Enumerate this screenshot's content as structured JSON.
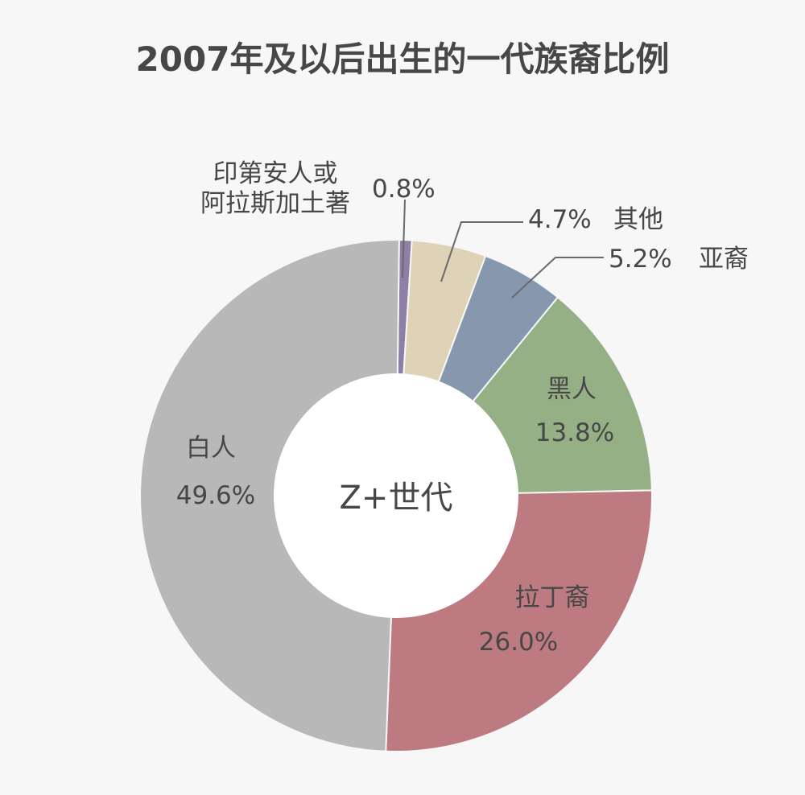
{
  "chart_data": {
    "type": "pie",
    "title": "2007年及以后出生的一代族裔比例",
    "center_label": "Z+世代",
    "categories": [
      "印第安人或阿拉斯加土著",
      "其他",
      "亚裔",
      "黑人",
      "拉丁裔",
      "白人"
    ],
    "slices": [
      {
        "key": "native",
        "label_lines": [
          "印第安人或",
          "阿拉斯加土著"
        ],
        "value": 0.8,
        "value_text": "0.8%",
        "color": "#8e7fa6"
      },
      {
        "key": "other",
        "label_lines": [
          "其他"
        ],
        "value": 4.7,
        "value_text": "4.7%",
        "color": "#ded3b7"
      },
      {
        "key": "asian",
        "label_lines": [
          "亚裔"
        ],
        "value": 5.2,
        "value_text": "5.2%",
        "color": "#8797ad"
      },
      {
        "key": "black",
        "label_lines": [
          "黑人"
        ],
        "value": 13.8,
        "value_text": "13.8%",
        "color": "#95b085"
      },
      {
        "key": "latino",
        "label_lines": [
          "拉丁裔"
        ],
        "value": 26.0,
        "value_text": "26.0%",
        "color": "#bd7b81"
      },
      {
        "key": "white",
        "label_lines": [
          "白人"
        ],
        "value": 49.6,
        "value_text": "49.6%",
        "color": "#b8b8b8"
      }
    ],
    "donut": true,
    "legend": "none"
  }
}
